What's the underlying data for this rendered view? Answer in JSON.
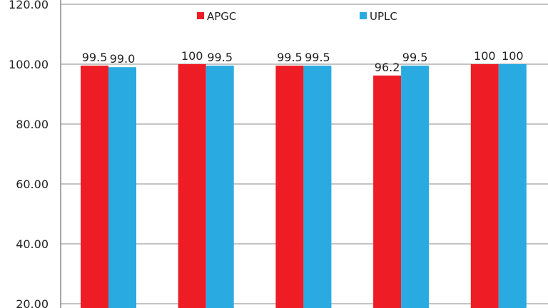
{
  "chart_data": {
    "type": "bar",
    "categories": [
      "",
      "",
      "",
      "",
      ""
    ],
    "series": [
      {
        "name": "APGC",
        "values": [
          99.5,
          100,
          99.5,
          96.2,
          100
        ],
        "labels": [
          "99.5",
          "100",
          "99.5",
          "96.2",
          "100"
        ],
        "color": "#ee1c25"
      },
      {
        "name": "UPLC",
        "values": [
          99.0,
          99.5,
          99.5,
          99.5,
          100
        ],
        "labels": [
          "99.0",
          "99.5",
          "99.5",
          "99.5",
          "100"
        ],
        "color": "#29abe2"
      }
    ],
    "y_ticks": [
      "20.00",
      "40.00",
      "60.00",
      "80.00",
      "100.00",
      "120.00"
    ],
    "ylim": [
      0,
      120
    ],
    "grid": true,
    "legend": "top",
    "title": "",
    "xlabel": "",
    "ylabel": ""
  }
}
